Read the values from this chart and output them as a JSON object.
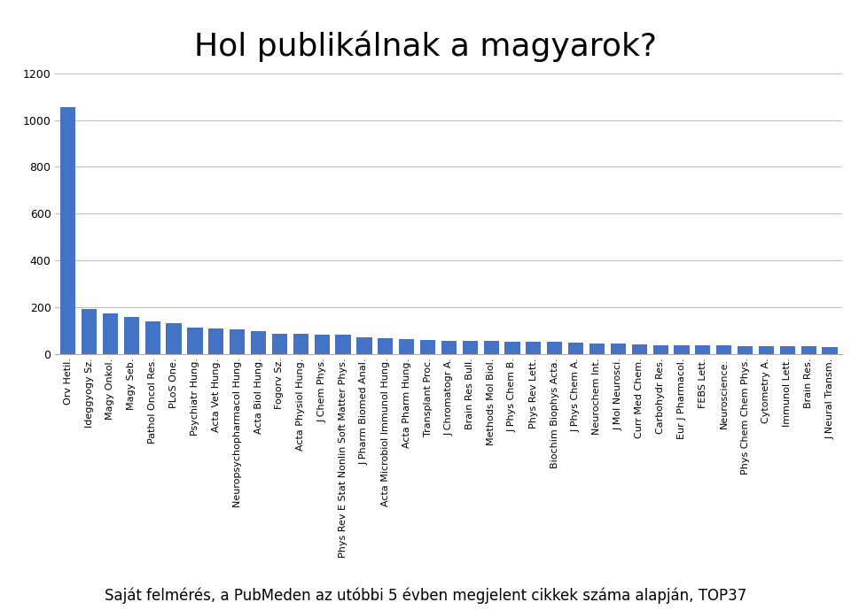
{
  "title": "Hol publikálnak a magyarok?",
  "subtitle": "Saját felmérés, a PubMeden az utóbbi 5 évben megjelent cikkek száma alapján, TOP37",
  "categories": [
    "Orv Hetil.",
    "Ideggyogy Sz.",
    "Magy Onkol.",
    "Magy Seb.",
    "Pathol Oncol Res.",
    "PLoS One.",
    "Psychiatr Hung.",
    "Acta Vet Hung.",
    "Neuropsychopharmacol Hung.",
    "Acta Biol Hung.",
    "Fogorv Sz.",
    "Acta Physiol Hung.",
    "J Chem Phys.",
    "Phys Rev E Stat Nonlin Soft Matter Phys.",
    "J Pharm Biomed Anal.",
    "Acta Microbiol Immunol Hung.",
    "Acta Pharm Hung.",
    "Transplant Proc.",
    "J Chromatogr A.",
    "Brain Res Bull.",
    "Methods Mol Biol.",
    "J Phys Chem B.",
    "Phys Rev Lett.",
    "Biochim Biophys Acta.",
    "J Phys Chem A.",
    "Neurochem Int.",
    "J Mol Neurosci.",
    "Curr Med Chem.",
    "Carbohydr Res.",
    "Eur J Pharmacol.",
    "FEBS Lett.",
    "Neuroscience.",
    "Phys Chem Chem Phys.",
    "Cytometry A.",
    "Immunol Lett.",
    "Brain Res.",
    "J Neural Transm."
  ],
  "values": [
    1055,
    190,
    172,
    158,
    138,
    130,
    112,
    108,
    105,
    97,
    87,
    86,
    83,
    80,
    70,
    68,
    63,
    60,
    57,
    55,
    54,
    52,
    51,
    50,
    48,
    45,
    43,
    40,
    38,
    37,
    36,
    35,
    34,
    33,
    32,
    31,
    30
  ],
  "bar_color": "#4472c4",
  "ylim": [
    0,
    1200
  ],
  "yticks": [
    0,
    200,
    400,
    600,
    800,
    1000,
    1200
  ],
  "background_color": "#ffffff",
  "grid_color": "#c0c0c0",
  "title_fontsize": 26,
  "subtitle_fontsize": 12,
  "tick_fontsize": 8,
  "ytick_fontsize": 9,
  "title_color": "#000000",
  "subtitle_color": "#000000"
}
